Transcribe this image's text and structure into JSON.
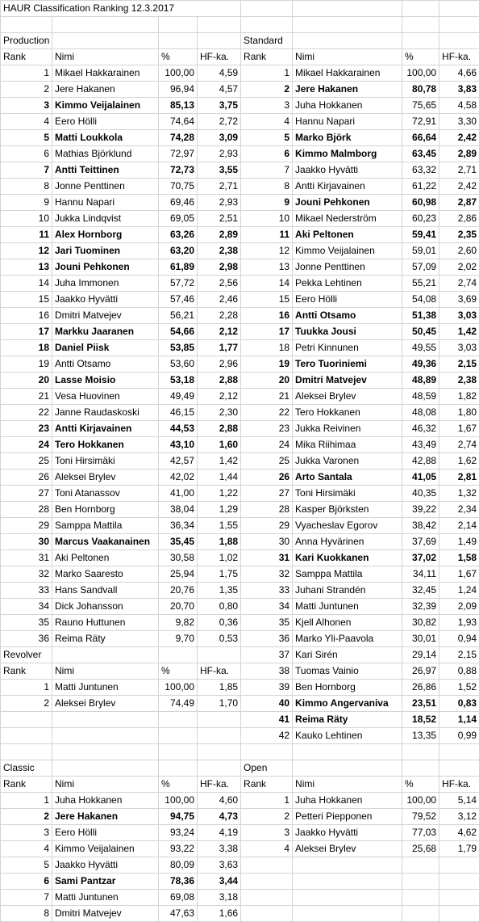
{
  "title": "HAUR Classification Ranking 12.3.2017",
  "headers": {
    "rank": "Rank",
    "name": "Nimi",
    "pct": "%",
    "hf": "HF-ka."
  },
  "production": {
    "label": "Production",
    "rows": [
      {
        "rank": "1",
        "name": "Mikael Hakkarainen",
        "pct": "100,00",
        "hf": "4,59",
        "bold": false
      },
      {
        "rank": "2",
        "name": "Jere Hakanen",
        "pct": "96,94",
        "hf": "4,57",
        "bold": false
      },
      {
        "rank": "3",
        "name": "Kimmo Veijalainen",
        "pct": "85,13",
        "hf": "3,75",
        "bold": true
      },
      {
        "rank": "4",
        "name": "Eero Hölli",
        "pct": "74,64",
        "hf": "2,72",
        "bold": false
      },
      {
        "rank": "5",
        "name": "Matti Loukkola",
        "pct": "74,28",
        "hf": "3,09",
        "bold": true
      },
      {
        "rank": "6",
        "name": "Mathias Björklund",
        "pct": "72,97",
        "hf": "2,93",
        "bold": false
      },
      {
        "rank": "7",
        "name": "Antti Teittinen",
        "pct": "72,73",
        "hf": "3,55",
        "bold": true
      },
      {
        "rank": "8",
        "name": "Jonne Penttinen",
        "pct": "70,75",
        "hf": "2,71",
        "bold": false
      },
      {
        "rank": "9",
        "name": "Hannu Napari",
        "pct": "69,46",
        "hf": "2,93",
        "bold": false
      },
      {
        "rank": "10",
        "name": "Jukka Lindqvist",
        "pct": "69,05",
        "hf": "2,51",
        "bold": false
      },
      {
        "rank": "11",
        "name": "Alex Hornborg",
        "pct": "63,26",
        "hf": "2,89",
        "bold": true
      },
      {
        "rank": "12",
        "name": "Jari Tuominen",
        "pct": "63,20",
        "hf": "2,38",
        "bold": true
      },
      {
        "rank": "13",
        "name": "Jouni Pehkonen",
        "pct": "61,89",
        "hf": "2,98",
        "bold": true
      },
      {
        "rank": "14",
        "name": "Juha Immonen",
        "pct": "57,72",
        "hf": "2,56",
        "bold": false
      },
      {
        "rank": "15",
        "name": "Jaakko Hyvätti",
        "pct": "57,46",
        "hf": "2,46",
        "bold": false
      },
      {
        "rank": "16",
        "name": "Dmitri Matvejev",
        "pct": "56,21",
        "hf": "2,28",
        "bold": false
      },
      {
        "rank": "17",
        "name": "Markku Jaaranen",
        "pct": "54,66",
        "hf": "2,12",
        "bold": true
      },
      {
        "rank": "18",
        "name": "Daniel Piisk",
        "pct": "53,85",
        "hf": "1,77",
        "bold": true
      },
      {
        "rank": "19",
        "name": "Antti Otsamo",
        "pct": "53,60",
        "hf": "2,96",
        "bold": false
      },
      {
        "rank": "20",
        "name": "Lasse Moisio",
        "pct": "53,18",
        "hf": "2,88",
        "bold": true
      },
      {
        "rank": "21",
        "name": "Vesa Huovinen",
        "pct": "49,49",
        "hf": "2,12",
        "bold": false
      },
      {
        "rank": "22",
        "name": "Janne Raudaskoski",
        "pct": "46,15",
        "hf": "2,30",
        "bold": false
      },
      {
        "rank": "23",
        "name": "Antti Kirjavainen",
        "pct": "44,53",
        "hf": "2,88",
        "bold": true
      },
      {
        "rank": "24",
        "name": "Tero Hokkanen",
        "pct": "43,10",
        "hf": "1,60",
        "bold": true
      },
      {
        "rank": "25",
        "name": "Toni Hirsimäki",
        "pct": "42,57",
        "hf": "1,42",
        "bold": false
      },
      {
        "rank": "26",
        "name": "Aleksei Brylev",
        "pct": "42,02",
        "hf": "1,44",
        "bold": false
      },
      {
        "rank": "27",
        "name": "Toni Atanassov",
        "pct": "41,00",
        "hf": "1,22",
        "bold": false
      },
      {
        "rank": "28",
        "name": "Ben Hornborg",
        "pct": "38,04",
        "hf": "1,29",
        "bold": false
      },
      {
        "rank": "29",
        "name": "Samppa Mattila",
        "pct": "36,34",
        "hf": "1,55",
        "bold": false
      },
      {
        "rank": "30",
        "name": "Marcus Vaakanainen",
        "pct": "35,45",
        "hf": "1,88",
        "bold": true
      },
      {
        "rank": "31",
        "name": "Aki Peltonen",
        "pct": "30,58",
        "hf": "1,02",
        "bold": false
      },
      {
        "rank": "32",
        "name": "Marko Saaresto",
        "pct": "25,94",
        "hf": "1,75",
        "bold": false
      },
      {
        "rank": "33",
        "name": "Hans Sandvall",
        "pct": "20,76",
        "hf": "1,35",
        "bold": false
      },
      {
        "rank": "34",
        "name": "Dick Johansson",
        "pct": "20,70",
        "hf": "0,80",
        "bold": false
      },
      {
        "rank": "35",
        "name": "Rauno Huttunen",
        "pct": "9,82",
        "hf": "0,36",
        "bold": false
      },
      {
        "rank": "36",
        "name": "Reima Räty",
        "pct": "9,70",
        "hf": "0,53",
        "bold": false
      }
    ]
  },
  "standard": {
    "label": "Standard",
    "rows": [
      {
        "rank": "1",
        "name": "Mikael Hakkarainen",
        "pct": "100,00",
        "hf": "4,66",
        "bold": false
      },
      {
        "rank": "2",
        "name": "Jere Hakanen",
        "pct": "80,78",
        "hf": "3,83",
        "bold": true
      },
      {
        "rank": "3",
        "name": "Juha Hokkanen",
        "pct": "75,65",
        "hf": "4,58",
        "bold": false
      },
      {
        "rank": "4",
        "name": "Hannu Napari",
        "pct": "72,91",
        "hf": "3,30",
        "bold": false
      },
      {
        "rank": "5",
        "name": "Marko Björk",
        "pct": "66,64",
        "hf": "2,42",
        "bold": true
      },
      {
        "rank": "6",
        "name": "Kimmo Malmborg",
        "pct": "63,45",
        "hf": "2,89",
        "bold": true
      },
      {
        "rank": "7",
        "name": "Jaakko Hyvätti",
        "pct": "63,32",
        "hf": "2,71",
        "bold": false
      },
      {
        "rank": "8",
        "name": "Antti Kirjavainen",
        "pct": "61,22",
        "hf": "2,42",
        "bold": false
      },
      {
        "rank": "9",
        "name": "Jouni Pehkonen",
        "pct": "60,98",
        "hf": "2,87",
        "bold": true
      },
      {
        "rank": "10",
        "name": "Mikael Nederström",
        "pct": "60,23",
        "hf": "2,86",
        "bold": false
      },
      {
        "rank": "11",
        "name": "Aki Peltonen",
        "pct": "59,41",
        "hf": "2,35",
        "bold": true
      },
      {
        "rank": "12",
        "name": "Kimmo Veijalainen",
        "pct": "59,01",
        "hf": "2,60",
        "bold": false
      },
      {
        "rank": "13",
        "name": "Jonne Penttinen",
        "pct": "57,09",
        "hf": "2,02",
        "bold": false
      },
      {
        "rank": "14",
        "name": "Pekka Lehtinen",
        "pct": "55,21",
        "hf": "2,74",
        "bold": false
      },
      {
        "rank": "15",
        "name": "Eero Hölli",
        "pct": "54,08",
        "hf": "3,69",
        "bold": false
      },
      {
        "rank": "16",
        "name": "Antti Otsamo",
        "pct": "51,38",
        "hf": "3,03",
        "bold": true
      },
      {
        "rank": "17",
        "name": "Tuukka Jousi",
        "pct": "50,45",
        "hf": "1,42",
        "bold": true
      },
      {
        "rank": "18",
        "name": "Petri Kinnunen",
        "pct": "49,55",
        "hf": "3,03",
        "bold": false
      },
      {
        "rank": "19",
        "name": "Tero Tuoriniemi",
        "pct": "49,36",
        "hf": "2,15",
        "bold": true
      },
      {
        "rank": "20",
        "name": "Dmitri Matvejev",
        "pct": "48,89",
        "hf": "2,38",
        "bold": true
      },
      {
        "rank": "21",
        "name": "Aleksei Brylev",
        "pct": "48,59",
        "hf": "1,82",
        "bold": false
      },
      {
        "rank": "22",
        "name": "Tero Hokkanen",
        "pct": "48,08",
        "hf": "1,80",
        "bold": false
      },
      {
        "rank": "23",
        "name": "Jukka Reivinen",
        "pct": "46,32",
        "hf": "1,67",
        "bold": false
      },
      {
        "rank": "24",
        "name": "Mika Riihimaa",
        "pct": "43,49",
        "hf": "2,74",
        "bold": false
      },
      {
        "rank": "25",
        "name": "Jukka Varonen",
        "pct": "42,88",
        "hf": "1,62",
        "bold": false
      },
      {
        "rank": "26",
        "name": "Arto Santala",
        "pct": "41,05",
        "hf": "2,81",
        "bold": true
      },
      {
        "rank": "27",
        "name": "Toni Hirsimäki",
        "pct": "40,35",
        "hf": "1,32",
        "bold": false
      },
      {
        "rank": "28",
        "name": "Kasper Björksten",
        "pct": "39,22",
        "hf": "2,34",
        "bold": false
      },
      {
        "rank": "29",
        "name": "Vyacheslav Egorov",
        "pct": "38,42",
        "hf": "2,14",
        "bold": false
      },
      {
        "rank": "30",
        "name": "Anna Hyvärinen",
        "pct": "37,69",
        "hf": "1,49",
        "bold": false
      },
      {
        "rank": "31",
        "name": "Kari Kuokkanen",
        "pct": "37,02",
        "hf": "1,58",
        "bold": true
      },
      {
        "rank": "32",
        "name": "Samppa Mattila",
        "pct": "34,11",
        "hf": "1,67",
        "bold": false
      },
      {
        "rank": "33",
        "name": "Juhani Strandén",
        "pct": "32,45",
        "hf": "1,24",
        "bold": false
      },
      {
        "rank": "34",
        "name": "Matti Juntunen",
        "pct": "32,39",
        "hf": "2,09",
        "bold": false
      },
      {
        "rank": "35",
        "name": "Kjell Alhonen",
        "pct": "30,82",
        "hf": "1,93",
        "bold": false
      },
      {
        "rank": "36",
        "name": "Marko Yli-Paavola",
        "pct": "30,01",
        "hf": "0,94",
        "bold": false
      },
      {
        "rank": "37",
        "name": "Kari Sirén",
        "pct": "29,14",
        "hf": "2,15",
        "bold": false
      },
      {
        "rank": "38",
        "name": "Tuomas Vainio",
        "pct": "26,97",
        "hf": "0,88",
        "bold": false
      },
      {
        "rank": "39",
        "name": "Ben Hornborg",
        "pct": "26,86",
        "hf": "1,52",
        "bold": false
      },
      {
        "rank": "40",
        "name": "Kimmo Angervaniva",
        "pct": "23,51",
        "hf": "0,83",
        "bold": true
      },
      {
        "rank": "41",
        "name": "Reima Räty",
        "pct": "18,52",
        "hf": "1,14",
        "bold": true
      },
      {
        "rank": "42",
        "name": "Kauko Lehtinen",
        "pct": "13,35",
        "hf": "0,99",
        "bold": false
      }
    ]
  },
  "revolver": {
    "label": "Revolver",
    "rows": [
      {
        "rank": "1",
        "name": "Matti Juntunen",
        "pct": "100,00",
        "hf": "1,85",
        "bold": false
      },
      {
        "rank": "2",
        "name": "Aleksei Brylev",
        "pct": "74,49",
        "hf": "1,70",
        "bold": false
      }
    ]
  },
  "classic": {
    "label": "Classic",
    "rows": [
      {
        "rank": "1",
        "name": "Juha Hokkanen",
        "pct": "100,00",
        "hf": "4,60",
        "bold": false
      },
      {
        "rank": "2",
        "name": "Jere Hakanen",
        "pct": "94,75",
        "hf": "4,73",
        "bold": true
      },
      {
        "rank": "3",
        "name": "Eero Hölli",
        "pct": "93,24",
        "hf": "4,19",
        "bold": false
      },
      {
        "rank": "4",
        "name": "Kimmo Veijalainen",
        "pct": "93,22",
        "hf": "3,38",
        "bold": false
      },
      {
        "rank": "5",
        "name": "Jaakko Hyvätti",
        "pct": "80,09",
        "hf": "3,63",
        "bold": false
      },
      {
        "rank": "6",
        "name": "Sami Pantzar",
        "pct": "78,36",
        "hf": "3,44",
        "bold": true
      },
      {
        "rank": "7",
        "name": "Matti Juntunen",
        "pct": "69,08",
        "hf": "3,18",
        "bold": false
      },
      {
        "rank": "8",
        "name": "Dmitri Matvejev",
        "pct": "47,63",
        "hf": "1,66",
        "bold": false
      }
    ]
  },
  "open": {
    "label": "Open",
    "rows": [
      {
        "rank": "1",
        "name": "Juha Hokkanen",
        "pct": "100,00",
        "hf": "5,14",
        "bold": false
      },
      {
        "rank": "2",
        "name": "Petteri Piepponen",
        "pct": "79,52",
        "hf": "3,12",
        "bold": false
      },
      {
        "rank": "3",
        "name": "Jaakko Hyvätti",
        "pct": "77,03",
        "hf": "4,62",
        "bold": false
      },
      {
        "rank": "4",
        "name": "Aleksei Brylev",
        "pct": "25,68",
        "hf": "1,79",
        "bold": false
      }
    ]
  }
}
